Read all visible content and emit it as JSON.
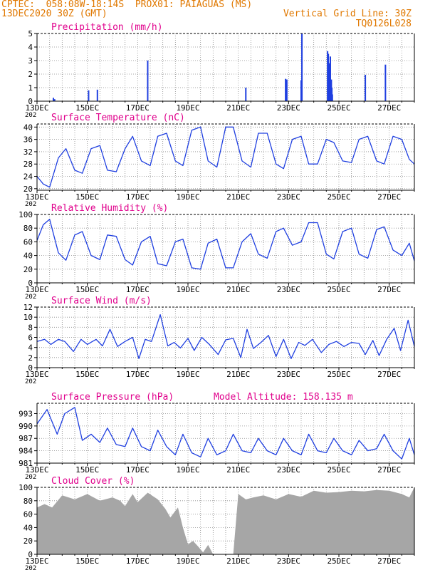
{
  "header": {
    "line1_left": "CPTEC:  058:08W-18:14S  PROX01: PAIAGUAS (MS)",
    "line2_left": "13DEC2020 30Z (GMT)",
    "line1_right": "Vertical Grid Line: 30Z",
    "line2_right": "TQ0126L028"
  },
  "colors": {
    "header": "#e07800",
    "title": "#e0008c",
    "series": "#1f3fe0",
    "bars": "#1f3fe0",
    "cloud": "#a6a6a6",
    "grid": "#8a8a8a"
  },
  "x_tick_labels": [
    "13DEC",
    "15DEC",
    "17DEC",
    "19DEC",
    "21DEC",
    "23DEC",
    "25DEC",
    "27DEC"
  ],
  "cut_label": "202",
  "chart_data": [
    {
      "id": "precip",
      "type": "bar",
      "title": "Precipitation (mm/h)",
      "x_unit": "days since 13DEC2020 00Z",
      "ylim": [
        0,
        5
      ],
      "yticks": [
        "0",
        "1",
        "2",
        "3",
        "4",
        "5"
      ],
      "x": [
        0.65,
        0.7,
        2.05,
        2.4,
        4.4,
        8.3,
        9.88,
        9.93,
        10.5,
        10.53,
        11.55,
        11.58,
        11.62,
        11.66,
        11.7,
        11.72,
        11.74,
        13.05,
        13.85
      ],
      "values": [
        0.25,
        0.15,
        0.8,
        0.85,
        3.0,
        1.0,
        1.65,
        1.6,
        1.55,
        5.0,
        3.7,
        3.5,
        2.8,
        3.3,
        1.6,
        1.0,
        0.5,
        1.95,
        2.7
      ]
    },
    {
      "id": "temp",
      "type": "line",
      "title": "Surface Temperature (nC)",
      "ylim": [
        19.5,
        41
      ],
      "yticks": [
        "20",
        "24",
        "28",
        "32",
        "36",
        "40"
      ],
      "x": [
        0,
        0.25,
        0.5,
        0.85,
        1.15,
        1.5,
        1.8,
        2.15,
        2.5,
        2.8,
        3.15,
        3.5,
        3.8,
        4.15,
        4.5,
        4.8,
        5.15,
        5.5,
        5.8,
        6.15,
        6.5,
        6.8,
        7.15,
        7.5,
        7.8,
        8.15,
        8.5,
        8.8,
        9.15,
        9.5,
        9.8,
        10.15,
        10.5,
        10.8,
        11.15,
        11.5,
        11.8,
        12.15,
        12.5,
        12.8,
        13.15,
        13.5,
        13.8,
        14.15,
        14.5,
        14.8,
        15
      ],
      "values": [
        24,
        21.5,
        20.5,
        30,
        33,
        26,
        25,
        33,
        34,
        26,
        25.5,
        33,
        37,
        29,
        27.5,
        37,
        38,
        29,
        27.5,
        39,
        40,
        29,
        27,
        40,
        40,
        29,
        27,
        38,
        38,
        28,
        26.5,
        36,
        37,
        28,
        28,
        36,
        35,
        29,
        28.5,
        36,
        37,
        29,
        28,
        37,
        36,
        29.5,
        28
      ]
    },
    {
      "id": "rh",
      "type": "line",
      "title": "Relative Humidity (%)",
      "ylim": [
        0,
        100
      ],
      "yticks": [
        "0",
        "20",
        "40",
        "60",
        "80",
        "100"
      ],
      "x": [
        0,
        0.25,
        0.5,
        0.85,
        1.15,
        1.5,
        1.8,
        2.15,
        2.5,
        2.8,
        3.15,
        3.5,
        3.8,
        4.15,
        4.5,
        4.8,
        5.15,
        5.5,
        5.8,
        6.15,
        6.5,
        6.8,
        7.15,
        7.5,
        7.8,
        8.15,
        8.5,
        8.8,
        9.15,
        9.5,
        9.8,
        10.15,
        10.5,
        10.8,
        11.15,
        11.5,
        11.8,
        12.15,
        12.5,
        12.8,
        13.15,
        13.5,
        13.8,
        14.15,
        14.5,
        14.8,
        15
      ],
      "values": [
        62,
        85,
        93,
        44,
        33,
        70,
        75,
        40,
        34,
        70,
        68,
        34,
        26,
        60,
        68,
        28,
        25,
        60,
        64,
        22,
        20,
        58,
        64,
        22,
        22,
        60,
        72,
        42,
        36,
        75,
        80,
        55,
        60,
        88,
        88,
        42,
        35,
        75,
        80,
        42,
        36,
        78,
        82,
        48,
        40,
        58,
        32
      ]
    },
    {
      "id": "wind",
      "type": "line",
      "title": "Surface Wind (m/s)",
      "ylim": [
        0,
        12
      ],
      "yticks": [
        "0",
        "2",
        "4",
        "6",
        "8",
        "10",
        "12"
      ],
      "x": [
        0,
        0.3,
        0.55,
        0.85,
        1.1,
        1.45,
        1.75,
        2.0,
        2.35,
        2.6,
        2.9,
        3.2,
        3.5,
        3.8,
        4.05,
        4.3,
        4.55,
        4.9,
        5.2,
        5.45,
        5.7,
        6.0,
        6.25,
        6.55,
        6.85,
        7.2,
        7.5,
        7.8,
        8.1,
        8.35,
        8.6,
        8.9,
        9.2,
        9.5,
        9.8,
        10.1,
        10.4,
        10.65,
        10.95,
        11.3,
        11.6,
        11.9,
        12.2,
        12.5,
        12.8,
        13.05,
        13.35,
        13.6,
        13.9,
        14.2,
        14.45,
        14.75,
        15
      ],
      "values": [
        5.2,
        5.6,
        4.6,
        5.6,
        5.2,
        3.2,
        5.6,
        4.6,
        5.6,
        4.3,
        7.6,
        4.2,
        5.2,
        6.0,
        1.8,
        5.6,
        5.2,
        10.5,
        4.3,
        5.0,
        3.9,
        5.8,
        3.4,
        6.0,
        4.6,
        2.6,
        5.5,
        5.8,
        2.0,
        7.6,
        3.8,
        5.0,
        6.4,
        2.2,
        5.6,
        1.8,
        5.0,
        4.4,
        5.6,
        3.0,
        4.6,
        5.2,
        4.2,
        5.0,
        4.8,
        2.6,
        5.4,
        2.4,
        5.6,
        7.8,
        3.4,
        9.4,
        4.2
      ]
    },
    {
      "id": "pressure",
      "type": "line",
      "title": "Surface Pressure (hPa)",
      "subtitle": "Model Altitude: 158.135 m",
      "ylim": [
        981,
        995.5
      ],
      "yticks": [
        "981",
        "984",
        "987",
        "990",
        "993"
      ],
      "x": [
        0,
        0.4,
        0.8,
        1.1,
        1.5,
        1.8,
        2.15,
        2.5,
        2.8,
        3.15,
        3.5,
        3.8,
        4.15,
        4.5,
        4.8,
        5.15,
        5.5,
        5.8,
        6.15,
        6.5,
        6.8,
        7.15,
        7.5,
        7.8,
        8.15,
        8.5,
        8.8,
        9.15,
        9.5,
        9.8,
        10.15,
        10.5,
        10.8,
        11.15,
        11.5,
        11.8,
        12.15,
        12.5,
        12.8,
        13.15,
        13.5,
        13.8,
        14.15,
        14.5,
        14.8,
        15
      ],
      "values": [
        990.5,
        994,
        988,
        993,
        994.5,
        986.5,
        988,
        986,
        989.5,
        985.5,
        985,
        989.5,
        985,
        984,
        989,
        985,
        983,
        988,
        983.5,
        982.5,
        987,
        983,
        984,
        988,
        984,
        983.5,
        987,
        984,
        983,
        987,
        984,
        983,
        988,
        984,
        983.5,
        987,
        984,
        983,
        986.5,
        984,
        984.5,
        988,
        984,
        982,
        987,
        983
      ]
    },
    {
      "id": "cloud",
      "type": "bar",
      "title": "Cloud Cover (%)",
      "ylim": [
        0,
        100
      ],
      "yticks": [
        "0",
        "20",
        "40",
        "60",
        "80",
        "100"
      ],
      "x": [
        0,
        0.3,
        0.6,
        1.0,
        1.5,
        2.0,
        2.5,
        3.0,
        3.3,
        3.5,
        3.8,
        4.0,
        4.4,
        4.8,
        5.1,
        5.3,
        5.6,
        5.8,
        6.0,
        6.2,
        6.4,
        6.6,
        6.8,
        7.0,
        7.2,
        7.4,
        7.6,
        7.8,
        8.0,
        8.3,
        8.6,
        9.0,
        9.5,
        10.0,
        10.5,
        11.0,
        11.5,
        12.0,
        12.5,
        13.0,
        13.5,
        14.0,
        14.5,
        14.8,
        15.0
      ],
      "values": [
        70,
        75,
        70,
        88,
        82,
        90,
        80,
        85,
        80,
        72,
        90,
        78,
        92,
        82,
        68,
        55,
        70,
        40,
        15,
        20,
        12,
        3,
        14,
        0,
        0,
        0,
        0,
        0,
        90,
        82,
        85,
        88,
        82,
        90,
        86,
        95,
        92,
        93,
        95,
        94,
        96,
        95,
        90,
        85,
        100
      ]
    }
  ]
}
